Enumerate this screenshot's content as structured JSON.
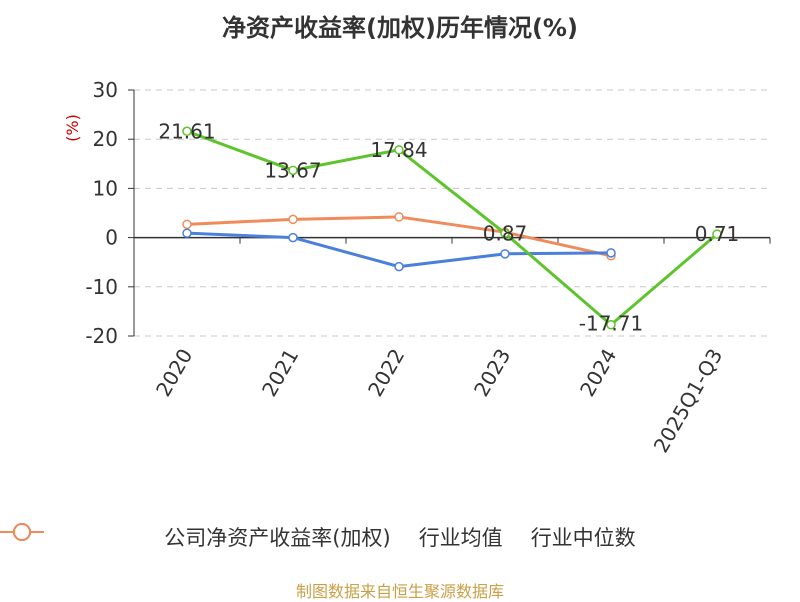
{
  "title": "净资产收益率(加权)历年情况(%)",
  "source": "制图数据来自恒生聚源数据库",
  "colors": {
    "axis": "#333333",
    "grid": "#c8c8c8",
    "ylabel": "#cc0000",
    "text": "#333333",
    "source": "#c8a047"
  },
  "chart_data": {
    "type": "line",
    "title": "净资产收益率(加权)历年情况(%)",
    "xlabel": "",
    "ylabel": "(%)",
    "categories": [
      "2020",
      "2021",
      "2022",
      "2023",
      "2024",
      "2025Q1-Q3"
    ],
    "yticks": [
      30,
      20,
      10,
      0,
      -10,
      -20
    ],
    "ylim": [
      -20,
      30
    ],
    "grid": true,
    "legend_position": "bottom",
    "series": [
      {
        "name": "公司净资产收益率(加权)",
        "color": "#5ec42b",
        "values": [
          21.61,
          13.67,
          17.84,
          0.87,
          -17.71,
          0.71
        ],
        "labels": [
          "21.61",
          "13.67",
          "17.84",
          "0.87",
          "-17.71",
          "0.71"
        ]
      },
      {
        "name": "行业均值",
        "color": "#4a7fdc",
        "values": [
          0.9,
          0.0,
          -5.9,
          -3.3,
          -3.1,
          null
        ]
      },
      {
        "name": "行业中位数",
        "color": "#f08b5a",
        "values": [
          2.7,
          3.7,
          4.2,
          1.1,
          -3.7,
          null
        ]
      }
    ]
  }
}
